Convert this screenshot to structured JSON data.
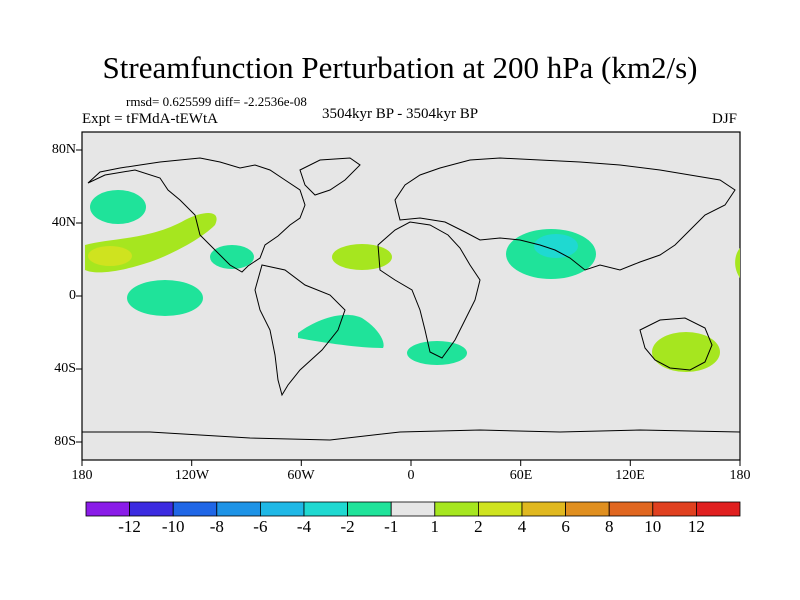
{
  "title": "Streamfunction Perturbation at 200 hPa (km2/s)",
  "rmsd": "rmsd= 0.625599 diff= -2.2536e-08",
  "experiment": "Expt = tFMdA-tEWtA",
  "period": "3504kyr BP - 3504kyr BP",
  "season": "DJF",
  "lat_labels": [
    "80N",
    "40N",
    "0",
    "40S",
    "80S"
  ],
  "lon_labels": [
    "180",
    "120W",
    "60W",
    "0",
    "60E",
    "120E",
    "180"
  ],
  "colorbar": {
    "colors": [
      "#8a1ce8",
      "#3c2be0",
      "#1f66e6",
      "#1e93e6",
      "#1fb8e6",
      "#1fd9d1",
      "#1fe39a",
      "#e6e6e6",
      "#a6e61f",
      "#cfe31f",
      "#e0b81f",
      "#e08f1f",
      "#e0661f",
      "#e0401f",
      "#e01f1f"
    ],
    "labels": [
      "-12",
      "-10",
      "-8",
      "-6",
      "-4",
      "-2",
      "-1",
      "1",
      "2",
      "4",
      "6",
      "8",
      "10",
      "12"
    ]
  },
  "map": {
    "background_color": "#e6e6e6",
    "coast_color": "#000000"
  }
}
